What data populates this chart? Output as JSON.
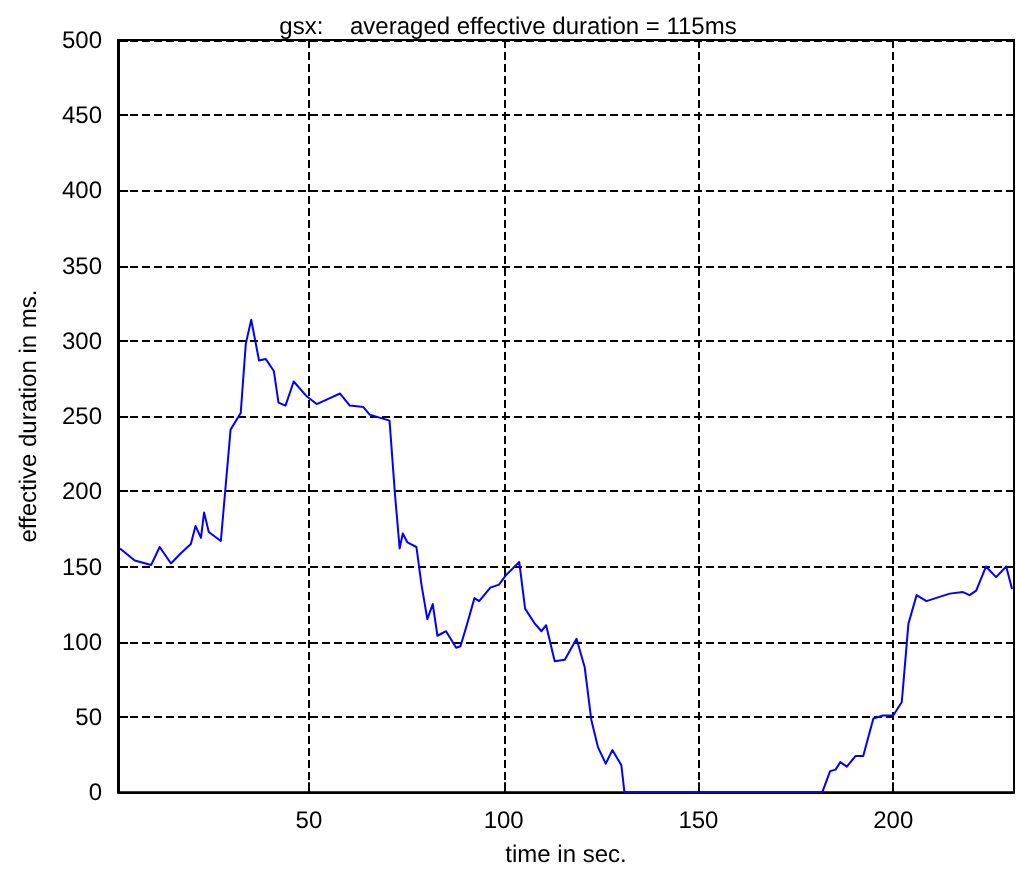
{
  "chart_data": {
    "type": "line",
    "title": "gsx:    averaged effective duration = 115ms",
    "xlabel": "time in sec.",
    "ylabel": "effective duration in ms.",
    "x": [
      1.5,
      5.3,
      9.5,
      11.7,
      14.6,
      17.2,
      19.7,
      20.9,
      22.3,
      23.1,
      24.3,
      27.4,
      29.9,
      32.5,
      33.8,
      35.2,
      37.2,
      38.9,
      41,
      42.2,
      44,
      46.1,
      49.5,
      52,
      55.4,
      58,
      60.5,
      64,
      65.6,
      70.7,
      72.1,
      73.3,
      74.1,
      75.3,
      77.6,
      78.9,
      80.4,
      81.8,
      83,
      85.2,
      87.8,
      88.9,
      90.3,
      92.5,
      93.7,
      96.6,
      98.8,
      100.5,
      104,
      105.5,
      108,
      109.7,
      110.9,
      113.1,
      115.7,
      118.7,
      120.8,
      122.5,
      124.2,
      126.2,
      127.9,
      130.2,
      131,
      181.8,
      183.8,
      185.2,
      186.4,
      188.1,
      190.3,
      192.3,
      194.9,
      197.4,
      200,
      202.2,
      203.9,
      206,
      208.5,
      214.5,
      217.9,
      219.6,
      221.3,
      223.8,
      226.4,
      229,
      230.5
    ],
    "series": [
      {
        "color": "#0000ff",
        "values": [
          162,
          154,
          151,
          163,
          152,
          159,
          165,
          177,
          169,
          186,
          173,
          167,
          241,
          252,
          298,
          314,
          287,
          288,
          280,
          259,
          257,
          273,
          263,
          258,
          262,
          265,
          257,
          256,
          251,
          247,
          198,
          162,
          172,
          166,
          163,
          138,
          115,
          125,
          104,
          107,
          96,
          97,
          109,
          129,
          127,
          136,
          138,
          144,
          153,
          122,
          112,
          107,
          111,
          87,
          88,
          102,
          83,
          48,
          30,
          19,
          28,
          18,
          0,
          0,
          14,
          15,
          20,
          17,
          24,
          24,
          49,
          51,
          51,
          60,
          112,
          131,
          127,
          132,
          133,
          131,
          134,
          150,
          143,
          150,
          135
        ]
      }
    ],
    "xlim": [
      1,
      231
    ],
    "xticks": [
      50,
      100,
      150,
      200
    ],
    "ylim": [
      0,
      500
    ],
    "yticks": [
      0,
      50,
      100,
      150,
      200,
      250,
      300,
      350,
      400,
      450,
      500
    ],
    "grid": true,
    "line_style": "solid",
    "marker": "none"
  }
}
